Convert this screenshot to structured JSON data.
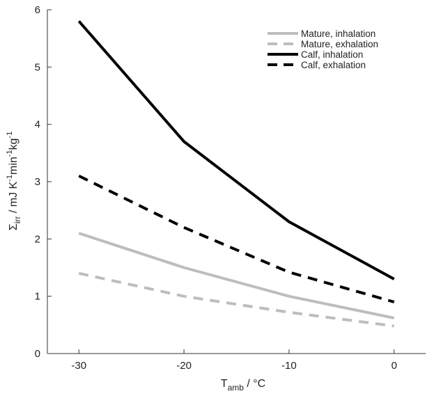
{
  "chart_data": {
    "type": "line",
    "x": [
      -30,
      -20,
      -10,
      0
    ],
    "xlim": [
      -33,
      3
    ],
    "ylim": [
      0,
      6
    ],
    "xticks": [
      "-30",
      "-20",
      "-10",
      "0"
    ],
    "yticks": [
      "0",
      "1",
      "2",
      "3",
      "4",
      "5",
      "6"
    ],
    "xlabel": {
      "main": "T",
      "sub": "amb",
      "rest": " / °C"
    },
    "ylabel": {
      "main": "Σ",
      "sub": "irr",
      "rest": " / mJ K",
      "sup1": "-1",
      "mid": "min",
      "sup2": "-1",
      "end": "kg",
      "sup3": "-1"
    },
    "grid": false,
    "legend_position": "top-right",
    "series": [
      {
        "name": "Mature, inhalation",
        "values": [
          2.1,
          1.5,
          1.0,
          0.62
        ],
        "color": "#bdbdbd",
        "dash": "solid"
      },
      {
        "name": "Mature, exhalation",
        "values": [
          1.4,
          1.0,
          0.72,
          0.48
        ],
        "color": "#bdbdbd",
        "dash": "dashed"
      },
      {
        "name": "Calf, inhalation",
        "values": [
          5.8,
          3.7,
          2.3,
          1.3
        ],
        "color": "#000000",
        "dash": "solid"
      },
      {
        "name": "Calf, exhalation",
        "values": [
          3.1,
          2.2,
          1.42,
          0.9
        ],
        "color": "#000000",
        "dash": "dashed"
      }
    ]
  }
}
